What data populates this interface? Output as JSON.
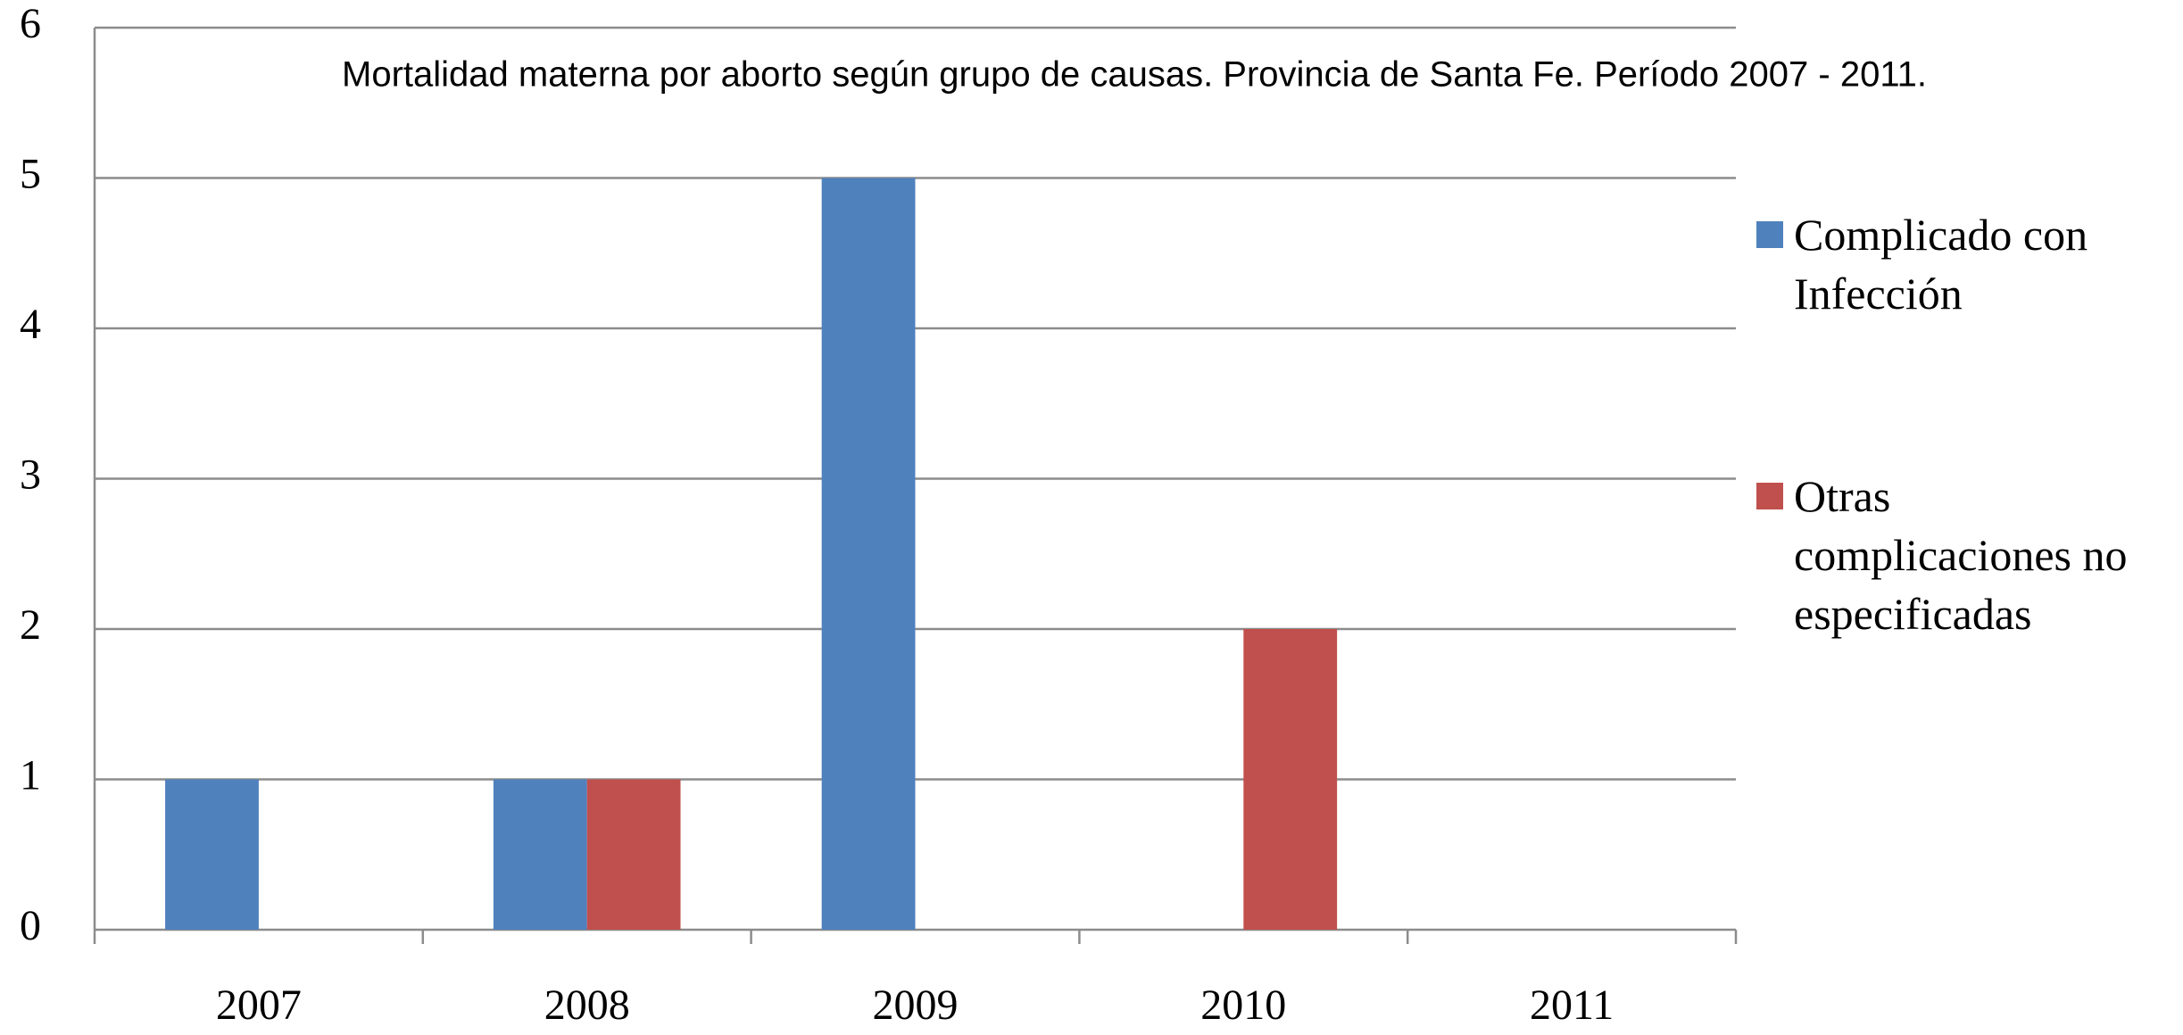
{
  "chart_data": {
    "type": "bar",
    "title": "Mortalidad materna por aborto según grupo de causas. Provincia de Santa Fe. Período 2007 - 2011.",
    "categories": [
      "2007",
      "2008",
      "2009",
      "2010",
      "2011"
    ],
    "series": [
      {
        "name": "Complicado con Infección",
        "color": "#4f81bd",
        "values": [
          1,
          1,
          5,
          0,
          0
        ]
      },
      {
        "name": "Otras complicaciones no especificadas",
        "color": "#c0504d",
        "values": [
          0,
          1,
          0,
          2,
          0
        ]
      }
    ],
    "ylim": [
      0,
      6
    ],
    "yticks": [
      0,
      1,
      2,
      3,
      4,
      5,
      6
    ],
    "grid": true,
    "legend": "right"
  }
}
